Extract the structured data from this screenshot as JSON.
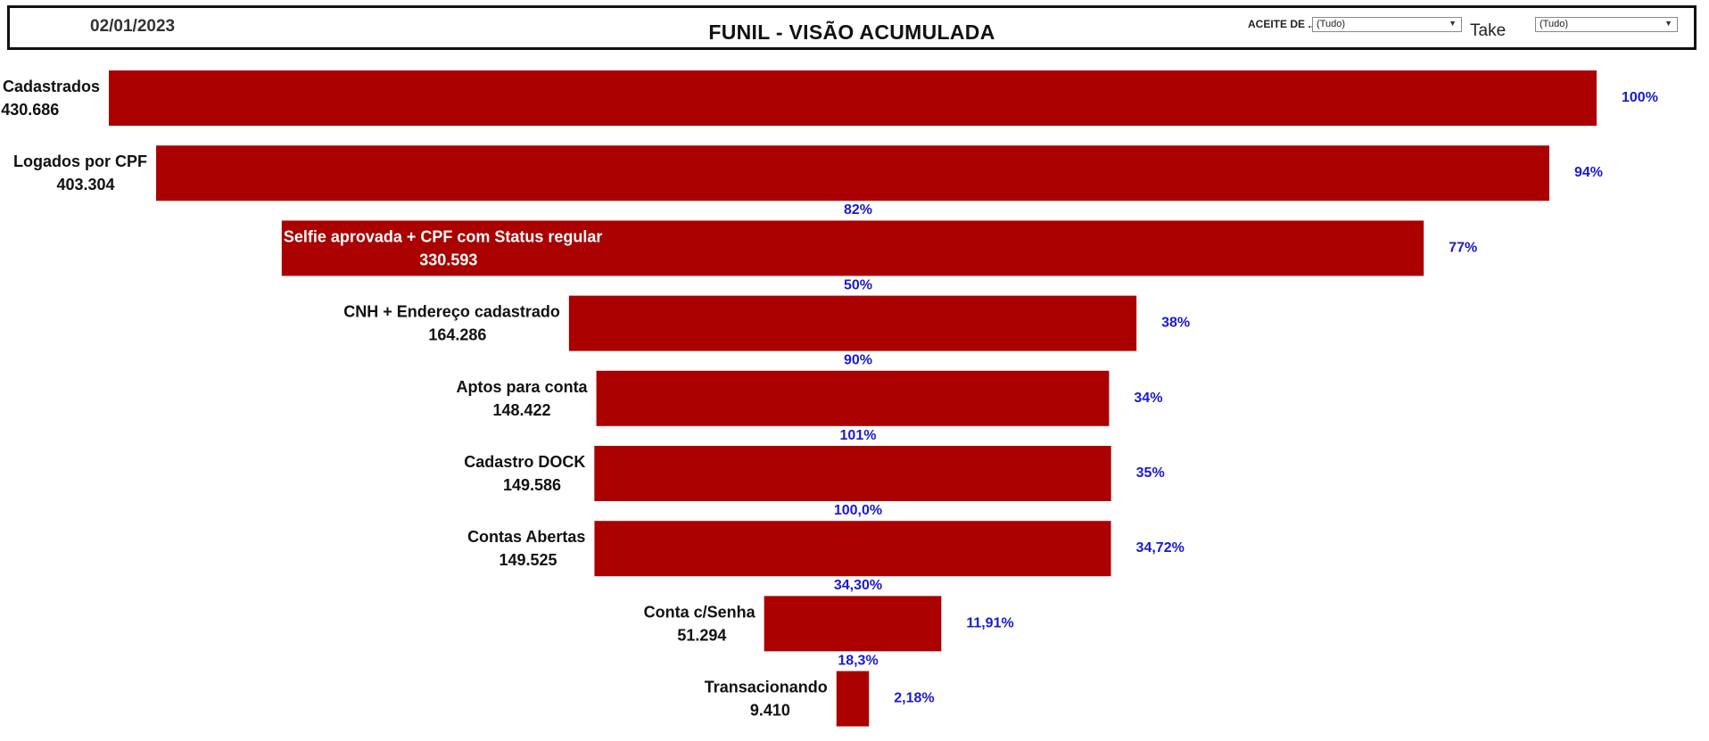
{
  "header": {
    "date": "02/01/2023",
    "title": "FUNIL - VISÃO ACUMULADA",
    "filters": [
      {
        "label": "ACEITE DE ...",
        "value": "(Tudo)"
      },
      {
        "label": "Take",
        "value": "(Tudo)"
      }
    ]
  },
  "colors": {
    "bar": "#aa0000",
    "label_text": "#111111",
    "inside_label_text": "#ffffff",
    "percent_text": "#1a1acc"
  },
  "chart_data": {
    "type": "bar",
    "title": "FUNIL - VISÃO ACUMULADA",
    "orientation": "horizontal-centered-funnel",
    "stages": [
      {
        "name": "CPF’s Cadastrados",
        "value": 430686,
        "value_label": "430.686",
        "pct_of_total": "100%",
        "step_conversion": ""
      },
      {
        "name": "Logados por CPF",
        "value": 403304,
        "value_label": "403.304",
        "pct_of_total": "94%",
        "step_conversion": "82%"
      },
      {
        "name": "Selfie aprovada + CPF com Status regular",
        "value": 330593,
        "value_label": "330.593",
        "pct_of_total": "77%",
        "step_conversion": "50%"
      },
      {
        "name": "CNH + Endereço cadastrado",
        "value": 164286,
        "value_label": "164.286",
        "pct_of_total": "38%",
        "step_conversion": "90%"
      },
      {
        "name": "Aptos para conta",
        "value": 148422,
        "value_label": "148.422",
        "pct_of_total": "34%",
        "step_conversion": "101%"
      },
      {
        "name": "Cadastro DOCK",
        "value": 149586,
        "value_label": "149.586",
        "pct_of_total": "35%",
        "step_conversion": "100,0%"
      },
      {
        "name": "Contas Abertas",
        "value": 149525,
        "value_label": "149.525",
        "pct_of_total": "34,72%",
        "step_conversion": "34,30%"
      },
      {
        "name": "Conta c/Senha",
        "value": 51294,
        "value_label": "51.294",
        "pct_of_total": "11,91%",
        "step_conversion": "18,3%"
      },
      {
        "name": "Transacionando",
        "value": 9410,
        "value_label": "9.410",
        "pct_of_total": "2,18%",
        "step_conversion": ""
      }
    ]
  }
}
